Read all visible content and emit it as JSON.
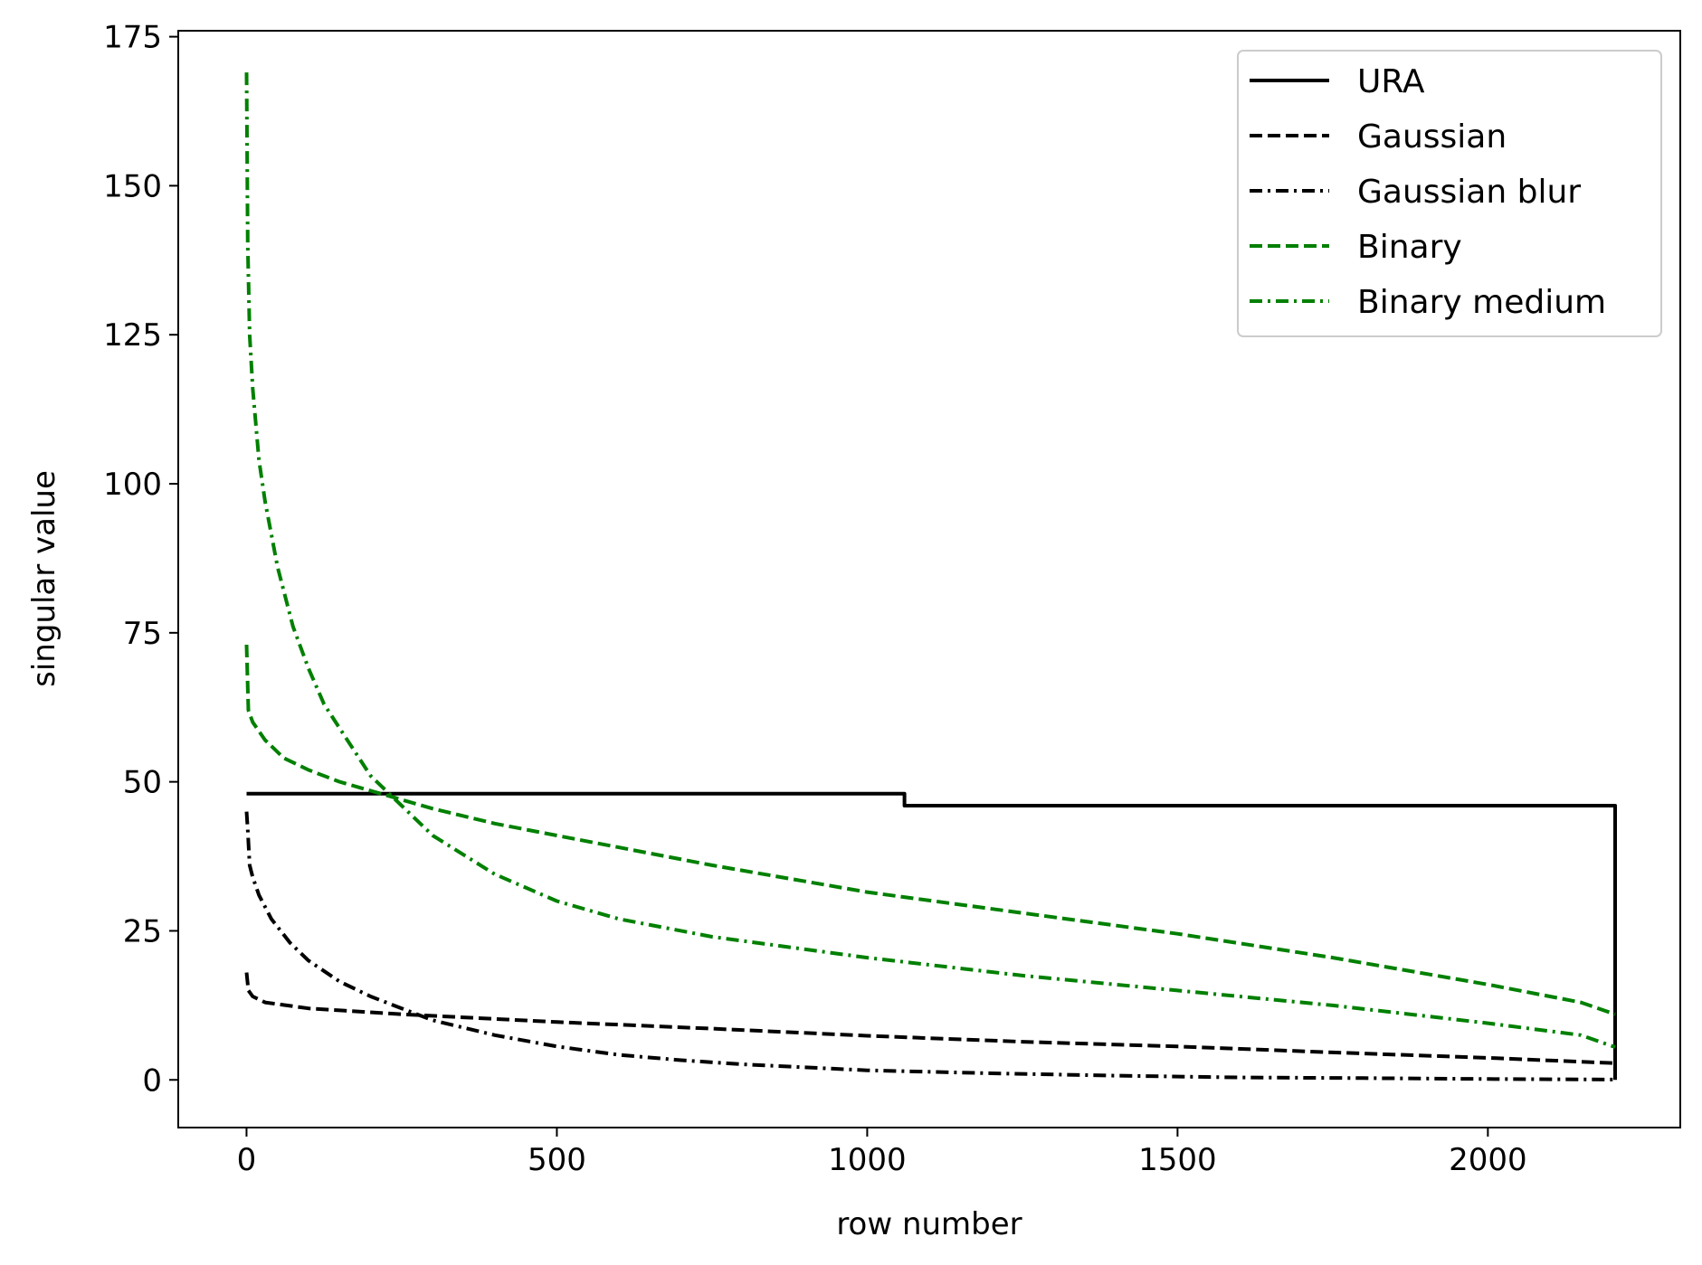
{
  "chart_data": {
    "type": "line",
    "title": "",
    "xlabel": "row number",
    "ylabel": "singular value",
    "xlim": [
      -110,
      2310
    ],
    "ylim": [
      -8,
      176
    ],
    "xticks": [
      0,
      500,
      1000,
      1500,
      2000
    ],
    "yticks": [
      0,
      25,
      50,
      75,
      100,
      125,
      150,
      175
    ],
    "grid": false,
    "legend_position": "top-right",
    "series": [
      {
        "name": "URA",
        "color": "#000000",
        "linestyle": "solid",
        "x": [
          0,
          1060,
          1060,
          2205,
          2205
        ],
        "y": [
          48,
          48,
          46,
          46,
          0
        ]
      },
      {
        "name": "Gaussian",
        "color": "#000000",
        "linestyle": "dashed",
        "x": [
          0,
          3,
          10,
          30,
          100,
          250,
          500,
          750,
          1000,
          1250,
          1500,
          1750,
          2000,
          2205
        ],
        "y": [
          18,
          15,
          14,
          13,
          12,
          11,
          9.7,
          8.6,
          7.4,
          6.4,
          5.6,
          4.6,
          3.7,
          2.8
        ]
      },
      {
        "name": "Gaussian blur",
        "color": "#000000",
        "linestyle": "dashdot",
        "x": [
          0,
          2,
          5,
          10,
          20,
          40,
          70,
          100,
          150,
          200,
          250,
          300,
          400,
          500,
          600,
          700,
          800,
          1000,
          1200,
          1400,
          1600,
          1800,
          2000,
          2205
        ],
        "y": [
          45,
          42,
          36,
          34,
          31,
          27,
          23,
          20,
          16.5,
          14,
          12,
          10,
          7.5,
          5.6,
          4.2,
          3.3,
          2.6,
          1.6,
          1.1,
          0.7,
          0.4,
          0.3,
          0.15,
          0.05
        ]
      },
      {
        "name": "Binary",
        "color": "#008000",
        "linestyle": "dashed",
        "x": [
          0,
          3,
          10,
          30,
          60,
          100,
          150,
          200,
          250,
          300,
          400,
          500,
          750,
          1000,
          1250,
          1500,
          1750,
          2000,
          2150,
          2205
        ],
        "y": [
          73,
          62,
          60,
          57,
          54,
          52,
          50,
          48.5,
          47,
          45.5,
          43,
          41,
          36,
          31.5,
          28,
          24.5,
          20.5,
          16,
          13,
          11
        ]
      },
      {
        "name": "Binary medium",
        "color": "#008000",
        "linestyle": "dashdot",
        "x": [
          0,
          2,
          5,
          10,
          20,
          30,
          50,
          75,
          100,
          125,
          150,
          175,
          200,
          250,
          300,
          400,
          500,
          600,
          750,
          1000,
          1250,
          1500,
          1750,
          2000,
          2150,
          2205
        ],
        "y": [
          169,
          140,
          125,
          116,
          104,
          97,
          86,
          76,
          69,
          63,
          59,
          55,
          51,
          46,
          41,
          34.5,
          30,
          27,
          24,
          20.5,
          17.5,
          15,
          12.5,
          9.5,
          7.5,
          5.5
        ]
      }
    ]
  }
}
